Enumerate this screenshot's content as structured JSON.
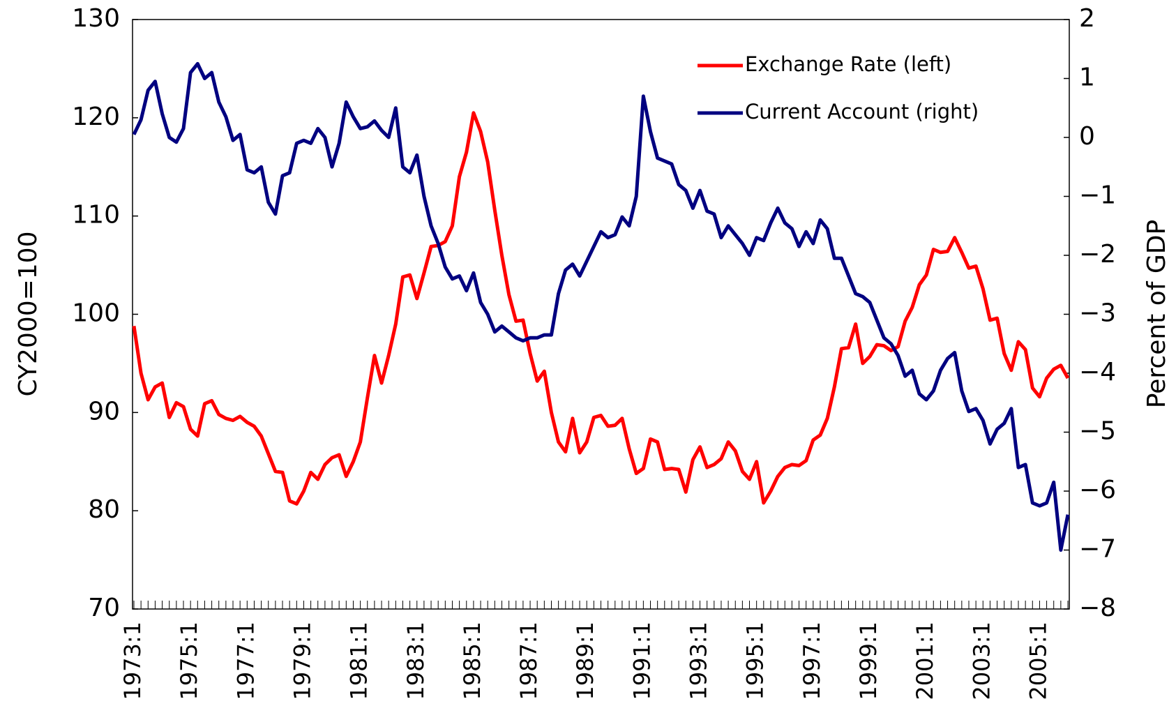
{
  "chart_data": {
    "type": "line",
    "y_label": "CY2000=100",
    "y2_label": "Percent of GDP",
    "categories": [
      "1973:1",
      null,
      null,
      null,
      null,
      null,
      null,
      null,
      "1975:1",
      null,
      null,
      null,
      null,
      null,
      null,
      null,
      "1977:1",
      null,
      null,
      null,
      null,
      null,
      null,
      null,
      "1979:1",
      null,
      null,
      null,
      null,
      null,
      null,
      null,
      "1981:1",
      null,
      null,
      null,
      null,
      null,
      null,
      null,
      "1983:1",
      null,
      null,
      null,
      null,
      null,
      null,
      null,
      "1985:1",
      null,
      null,
      null,
      null,
      null,
      null,
      null,
      "1987:1",
      null,
      null,
      null,
      null,
      null,
      null,
      null,
      "1989:1",
      null,
      null,
      null,
      null,
      null,
      null,
      null,
      "1991:1",
      null,
      null,
      null,
      null,
      null,
      null,
      null,
      "1993:1",
      null,
      null,
      null,
      null,
      null,
      null,
      null,
      "1995:1",
      null,
      null,
      null,
      null,
      null,
      null,
      null,
      "1997:1",
      null,
      null,
      null,
      null,
      null,
      null,
      null,
      "1999:1",
      null,
      null,
      null,
      null,
      null,
      null,
      null,
      "2001:1",
      null,
      null,
      null,
      null,
      null,
      null,
      null,
      "2003:1",
      null,
      null,
      null,
      null,
      null,
      null,
      null,
      "2005:1",
      null,
      null,
      null,
      null
    ],
    "series": [
      {
        "name": "Exchange Rate (left)",
        "color": "#ff0000",
        "axis": "y",
        "values": [
          98.8,
          94,
          91.3,
          92.6,
          93,
          89.5,
          91,
          90.6,
          88.3,
          87.6,
          90.9,
          91.2,
          89.8,
          89.4,
          89.2,
          89.6,
          89,
          88.6,
          87.6,
          85.8,
          84,
          83.9,
          81,
          80.7,
          82,
          83.9,
          83.2,
          84.7,
          85.4,
          85.7,
          83.5,
          85,
          87,
          91.5,
          95.8,
          93,
          95.8,
          99,
          103.8,
          104,
          101.6,
          104.2,
          106.9,
          107,
          107.4,
          109,
          114,
          116.5,
          120.5,
          118.6,
          115.5,
          110.6,
          106,
          102,
          99.3,
          99.4,
          96,
          93.2,
          94.2,
          90,
          87,
          86,
          89.4,
          85.9,
          87,
          89.5,
          89.7,
          88.6,
          88.7,
          89.4,
          86.3,
          83.8,
          84.3,
          87.3,
          87,
          84.2,
          84.3,
          84.2,
          81.9,
          85.2,
          86.5,
          84.4,
          84.7,
          85.3,
          87,
          86.1,
          84,
          83.2,
          85,
          80.8,
          82,
          83.5,
          84.4,
          84.7,
          84.6,
          85.1,
          87.2,
          87.7,
          89.4,
          92.6,
          96.5,
          96.6,
          99,
          95,
          95.7,
          96.9,
          96.8,
          96.3,
          96.7,
          99.3,
          100.7,
          103,
          104,
          106.6,
          106.3,
          106.4,
          107.8,
          106.3,
          104.7,
          104.9,
          102.6,
          99.4,
          99.6,
          96,
          94.3,
          97.2,
          96.4,
          92.5,
          91.6,
          93.5,
          94.4,
          94.8,
          93.5
        ]
      },
      {
        "name": "Current Account (right)",
        "color": "#000080",
        "axis": "y2",
        "values": [
          0.05,
          0.3,
          0.8,
          0.95,
          0.4,
          0.0,
          -0.08,
          0.15,
          1.1,
          1.25,
          1.0,
          1.1,
          0.6,
          0.35,
          -0.05,
          0.05,
          -0.55,
          -0.6,
          -0.5,
          -1.1,
          -1.3,
          -0.65,
          -0.6,
          -0.1,
          -0.05,
          -0.1,
          0.15,
          0.0,
          -0.5,
          -0.1,
          0.6,
          0.35,
          0.15,
          0.18,
          0.28,
          0.12,
          0.0,
          0.5,
          -0.5,
          -0.6,
          -0.3,
          -1.0,
          -1.5,
          -1.8,
          -2.2,
          -2.4,
          -2.35,
          -2.6,
          -2.3,
          -2.8,
          -3.0,
          -3.3,
          -3.2,
          -3.3,
          -3.4,
          -3.45,
          -3.4,
          -3.4,
          -3.35,
          -3.35,
          -2.65,
          -2.25,
          -2.15,
          -2.35,
          -2.1,
          -1.85,
          -1.6,
          -1.7,
          -1.65,
          -1.35,
          -1.5,
          -1.0,
          0.7,
          0.1,
          -0.35,
          -0.4,
          -0.45,
          -0.8,
          -0.9,
          -1.2,
          -0.9,
          -1.25,
          -1.3,
          -1.7,
          -1.5,
          -1.65,
          -1.8,
          -2.0,
          -1.7,
          -1.75,
          -1.45,
          -1.2,
          -1.45,
          -1.55,
          -1.85,
          -1.6,
          -1.8,
          -1.4,
          -1.55,
          -2.05,
          -2.05,
          -2.35,
          -2.65,
          -2.7,
          -2.8,
          -3.1,
          -3.4,
          -3.5,
          -3.7,
          -4.05,
          -3.95,
          -4.35,
          -4.45,
          -4.3,
          -3.95,
          -3.75,
          -3.65,
          -4.3,
          -4.65,
          -4.6,
          -4.8,
          -5.2,
          -4.95,
          -4.85,
          -4.6,
          -5.6,
          -5.55,
          -6.2,
          -6.25,
          -6.2,
          -5.85,
          -7.0,
          -6.4
        ]
      }
    ],
    "ylim": [
      70,
      130
    ],
    "yticks": [
      70,
      80,
      90,
      100,
      110,
      120,
      130
    ],
    "y2lim": [
      -8,
      2
    ],
    "y2ticks": [
      {
        "value": -8,
        "label": "−8"
      },
      {
        "value": -7,
        "label": "−7"
      },
      {
        "value": -6,
        "label": "−6"
      },
      {
        "value": -5,
        "label": "−5"
      },
      {
        "value": -4,
        "label": "−4"
      },
      {
        "value": -3,
        "label": "−3"
      },
      {
        "value": -2,
        "label": "−2"
      },
      {
        "value": -1,
        "label": "−1"
      },
      0,
      1,
      2
    ],
    "legend": "upper right"
  }
}
